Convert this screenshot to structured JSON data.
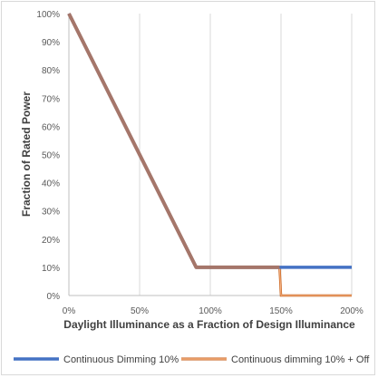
{
  "chart_data": {
    "type": "line",
    "title": "",
    "xlabel": "Daylight Illuminance as a Fraction of Design Illuminance",
    "ylabel": "Fraction of Rated Power",
    "xlim": [
      0,
      2
    ],
    "ylim": [
      0,
      1
    ],
    "x_ticks": [
      "0%",
      "50%",
      "100%",
      "150%",
      "200%"
    ],
    "y_ticks": [
      "0%",
      "10%",
      "20%",
      "30%",
      "40%",
      "50%",
      "60%",
      "70%",
      "80%",
      "90%",
      "100%"
    ],
    "grid": "vertical",
    "legend": "bottom",
    "series": [
      {
        "name": "Continuous Dimming 10%",
        "color": "#4472c4",
        "points": [
          [
            0,
            1.0
          ],
          [
            0.9,
            0.1
          ],
          [
            2.0,
            0.1
          ]
        ]
      },
      {
        "name": "Continuous dimming 10% + Off",
        "color": "#f4b183",
        "points": [
          [
            0,
            1.0
          ],
          [
            0.9,
            0.1
          ],
          [
            1.49,
            0.1
          ],
          [
            1.5,
            0.0
          ],
          [
            2.0,
            0.0
          ]
        ]
      }
    ]
  }
}
